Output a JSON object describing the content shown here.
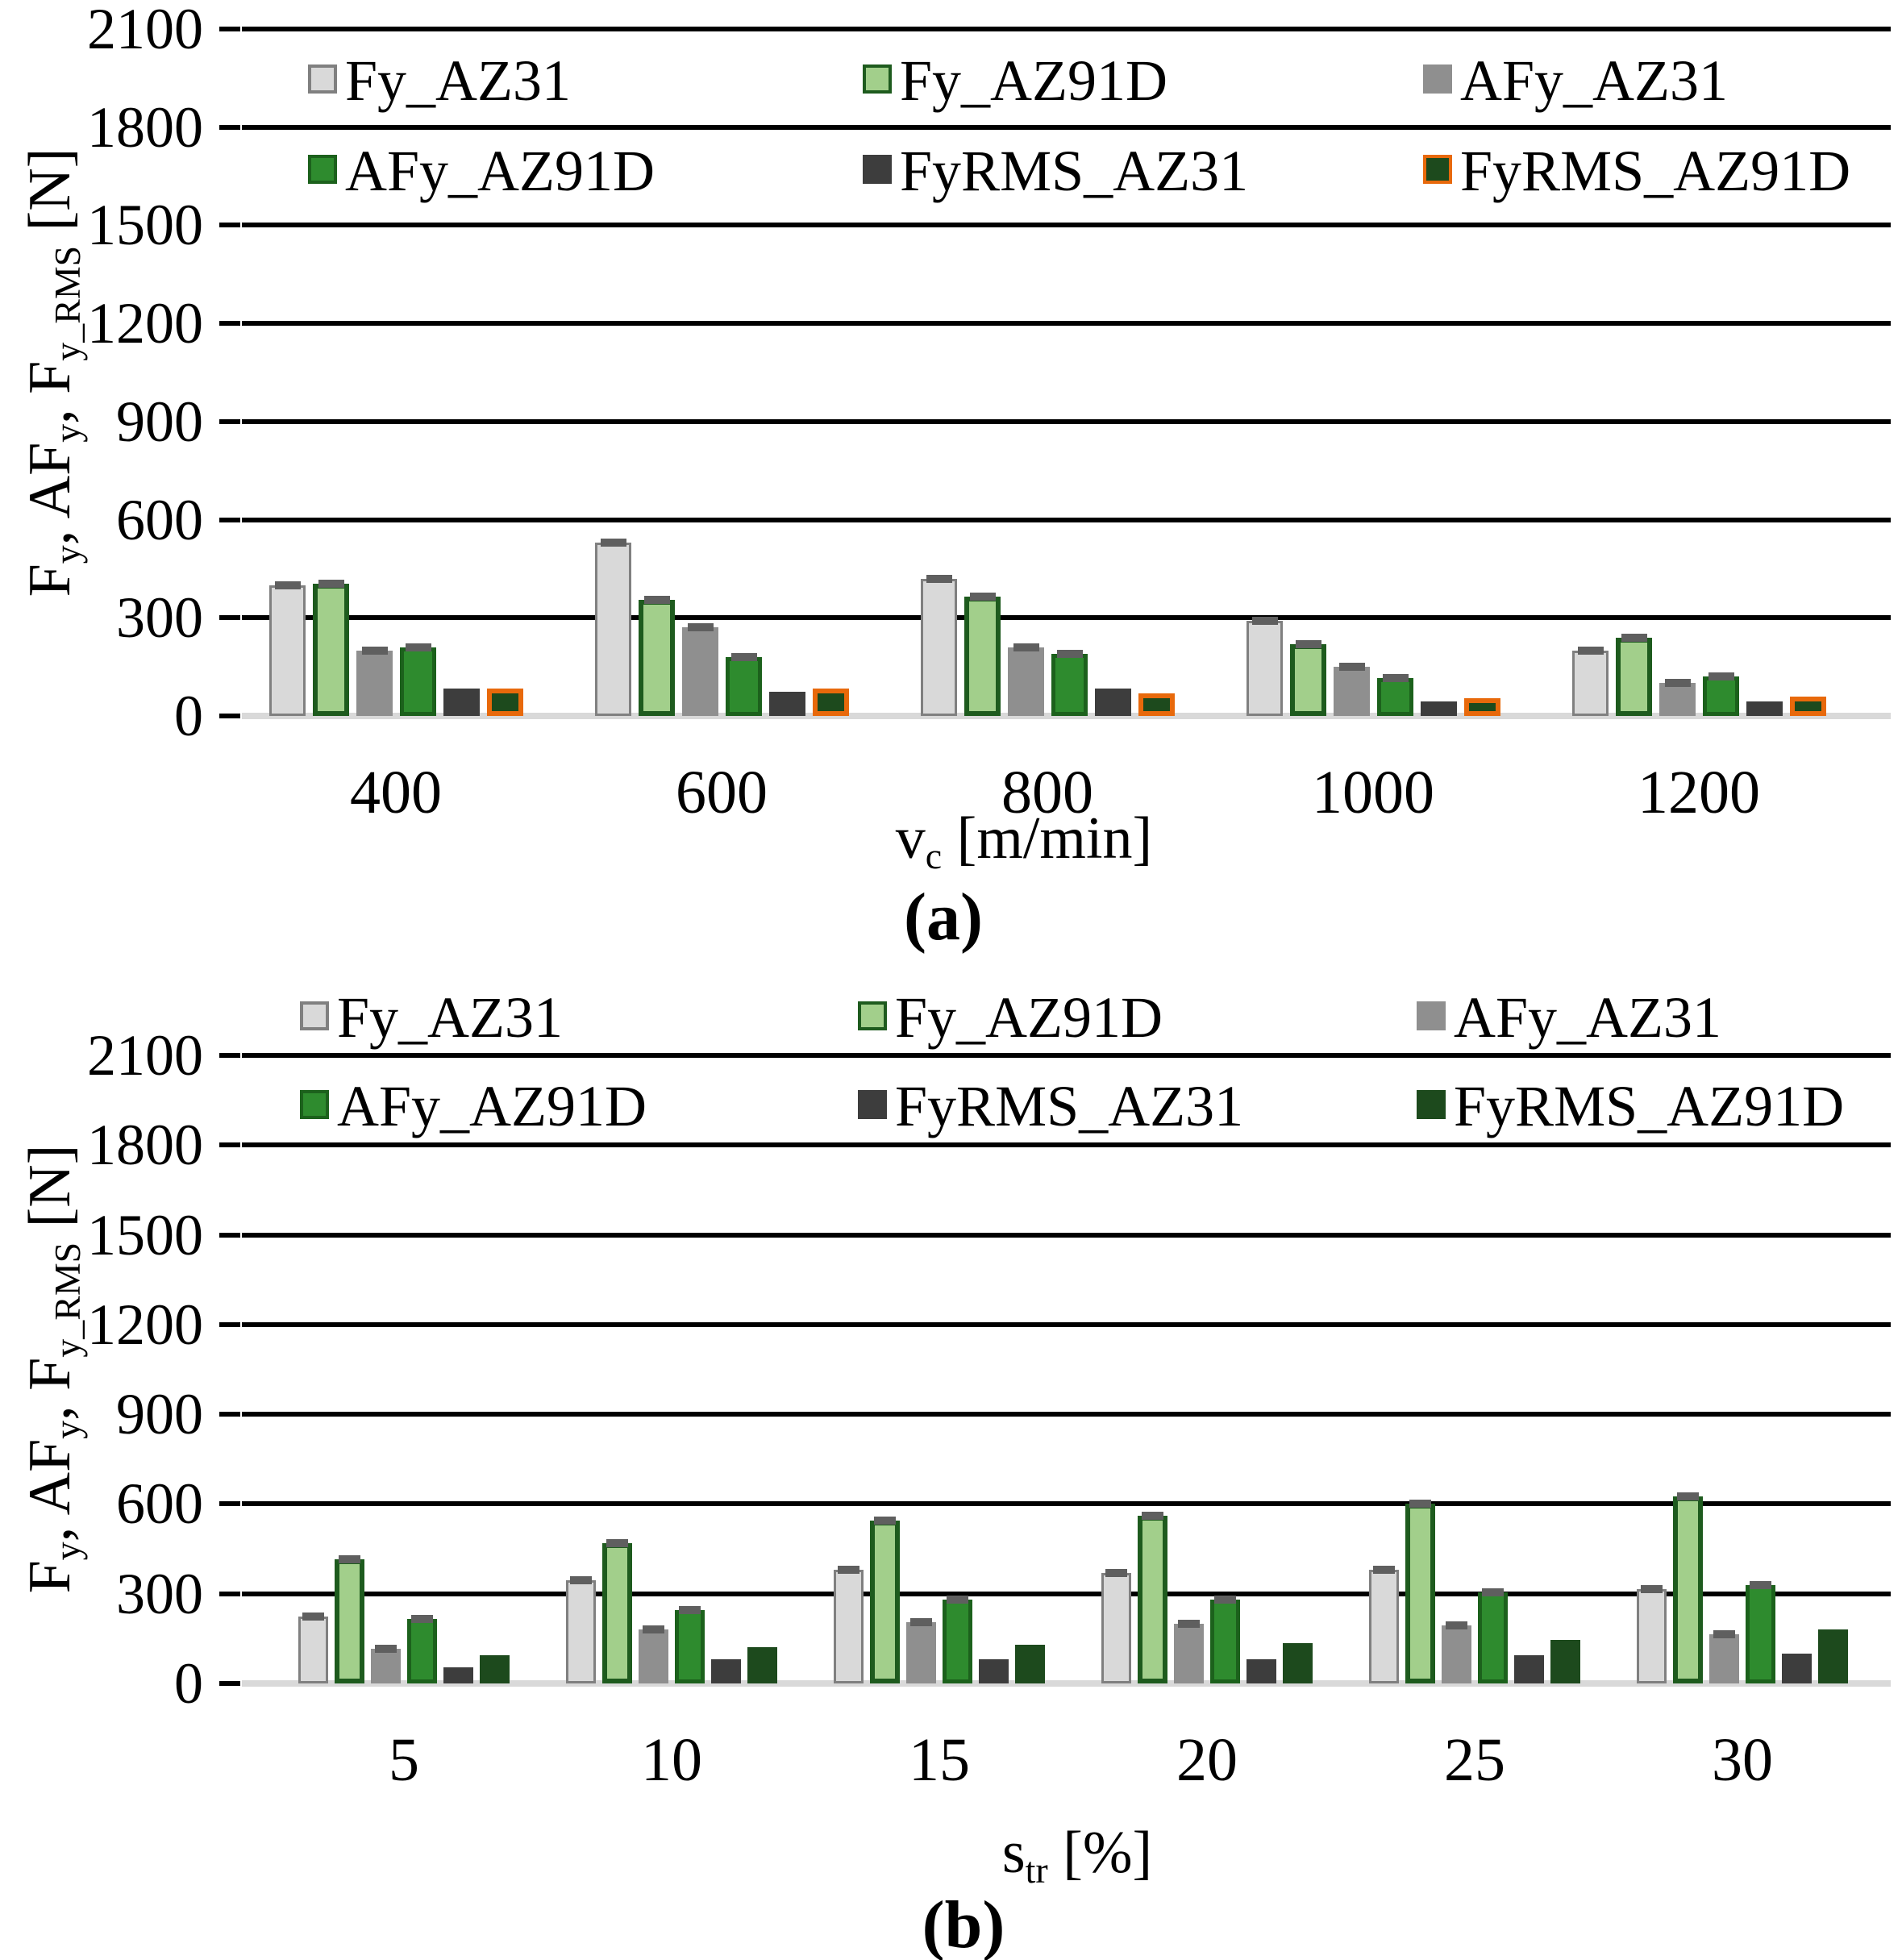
{
  "figure": {
    "background": "#ffffff",
    "grid_color": "#000000",
    "baseline_color": "#d9d9d9",
    "error_cap_color": "#5f5f5f",
    "captions": {
      "a": "(a)",
      "b": "(b)"
    }
  },
  "chart_data": [
    {
      "id": "a",
      "type": "bar",
      "caption": "(a)",
      "xlabel": "v~c~ [m/min]",
      "ylabel": "F~y~, AF~y~, F~y_RMS~ [N]",
      "ylim": [
        0,
        2100
      ],
      "ytick_step": 300,
      "ytick_labels": [
        "0",
        "300",
        "600",
        "900",
        "1200",
        "1500",
        "1800",
        "2100"
      ],
      "grid": "horizontal black lines, light-gray zero baseline",
      "legend_position": "inside-top, 2 rows x 3 columns",
      "categories": [
        "400",
        "600",
        "800",
        "1000",
        "1200"
      ],
      "series": [
        {
          "name": "Fy_AZ31",
          "fill": "#d9d9d9",
          "border": "#808080",
          "border_width": 3,
          "error_cap": true,
          "values": [
            400,
            530,
            420,
            290,
            200
          ]
        },
        {
          "name": "Fy_AZ91D",
          "fill": "#a2cf8b",
          "border": "#1e5b1e",
          "border_width": 6,
          "error_cap": true,
          "values": [
            405,
            355,
            365,
            220,
            240
          ]
        },
        {
          "name": "AFy_AZ31",
          "fill": "#8f8f8f",
          "border": "#8f8f8f",
          "border_width": 0,
          "error_cap": true,
          "values": [
            200,
            270,
            210,
            150,
            100
          ]
        },
        {
          "name": "AFy_AZ91D",
          "fill": "#2e8b2e",
          "border": "#1c611c",
          "border_width": 5,
          "error_cap": true,
          "values": [
            210,
            180,
            190,
            115,
            120
          ]
        },
        {
          "name": "FyRMS_AZ31",
          "fill": "#3d3d3d",
          "border": "#3d3d3d",
          "border_width": 0,
          "error_cap": false,
          "values": [
            85,
            75,
            85,
            45,
            45
          ]
        },
        {
          "name": "FyRMS_AZ91D",
          "fill": "#1d4a1d",
          "border": "#e8690b",
          "border_width": 6,
          "error_cap": false,
          "values": [
            85,
            85,
            70,
            55,
            60
          ]
        }
      ]
    },
    {
      "id": "b",
      "type": "bar",
      "caption": "(b)",
      "xlabel": "s~tr~ [%]",
      "ylabel": "F~y~, AF~y~, F~y_RMS~ [N]",
      "ylim": [
        0,
        2100
      ],
      "ytick_step": 300,
      "ytick_labels": [
        "0",
        "300",
        "600",
        "900",
        "1200",
        "1500",
        "1800",
        "2100"
      ],
      "grid": "horizontal black lines, light-gray zero baseline",
      "legend_position": "top, 2 rows x 3 columns",
      "categories": [
        "5",
        "10",
        "15",
        "20",
        "25",
        "30"
      ],
      "series": [
        {
          "name": "Fy_AZ31",
          "fill": "#d9d9d9",
          "border": "#808080",
          "border_width": 3,
          "error_cap": true,
          "values": [
            225,
            345,
            380,
            370,
            380,
            315
          ]
        },
        {
          "name": "Fy_AZ91D",
          "fill": "#a2cf8b",
          "border": "#1e5b1e",
          "border_width": 6,
          "error_cap": true,
          "values": [
            415,
            470,
            545,
            560,
            600,
            625
          ]
        },
        {
          "name": "AFy_AZ31",
          "fill": "#8f8f8f",
          "border": "#8f8f8f",
          "border_width": 0,
          "error_cap": true,
          "values": [
            115,
            180,
            205,
            200,
            195,
            165
          ]
        },
        {
          "name": "AFy_AZ91D",
          "fill": "#2e8b2e",
          "border": "#1c611c",
          "border_width": 5,
          "error_cap": true,
          "values": [
            215,
            245,
            280,
            280,
            305,
            330
          ]
        },
        {
          "name": "FyRMS_AZ31",
          "fill": "#3d3d3d",
          "border": "#3d3d3d",
          "border_width": 0,
          "error_cap": false,
          "values": [
            55,
            80,
            80,
            80,
            95,
            100
          ]
        },
        {
          "name": "FyRMS_AZ91D",
          "fill": "#1d4a1d",
          "border": "#1d4a1d",
          "border_width": 0,
          "error_cap": false,
          "values": [
            95,
            120,
            130,
            135,
            145,
            180
          ]
        }
      ]
    }
  ]
}
